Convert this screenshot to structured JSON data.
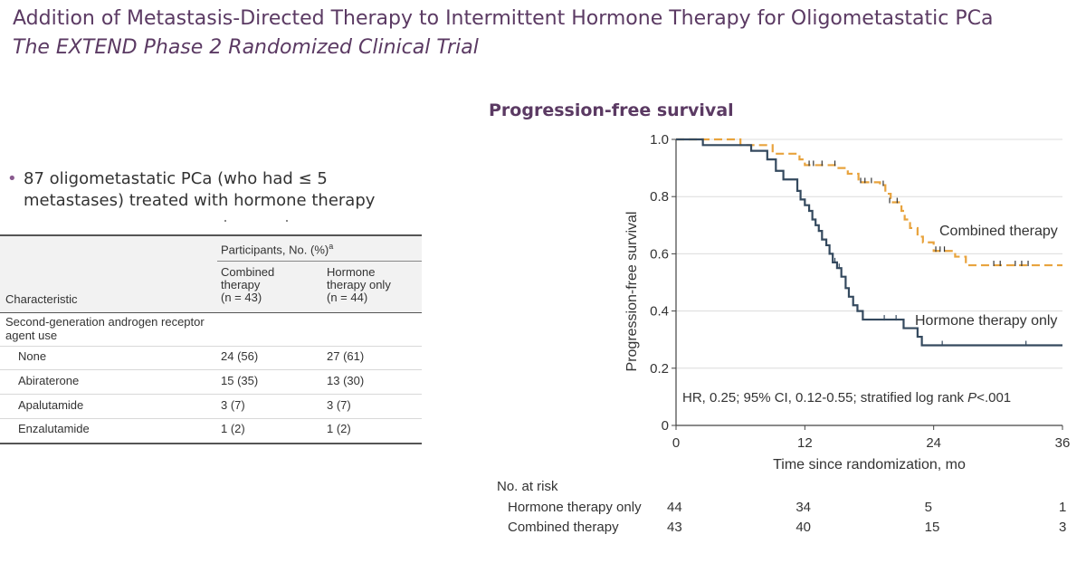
{
  "header": {
    "title": "Addition of Metastasis-Directed Therapy to Intermittent Hormone Therapy for Oligometastatic PCa",
    "subtitle": "The EXTEND Phase 2 Randomized Clinical Trial"
  },
  "bullet": {
    "text": "87 oligometastatic PCa (who had ≤ 5 metastases) treated with hormone therapy"
  },
  "table": {
    "group_header": "Participants, No. (%)",
    "group_footnote": "a",
    "col_characteristic": "Characteristic",
    "col_combined": [
      "Combined",
      "therapy",
      "(n = 43)"
    ],
    "col_hormone": [
      "Hormone",
      "therapy only",
      "(n = 44)"
    ],
    "section": [
      "Second-generation androgen receptor",
      "agent use"
    ],
    "rows": [
      {
        "label": "None",
        "combined": "24 (56)",
        "hormone": "27 (61)"
      },
      {
        "label": "Abiraterone",
        "combined": "15 (35)",
        "hormone": "13 (30)"
      },
      {
        "label": "Apalutamide",
        "combined": "3 (7)",
        "hormone": "3 (7)"
      },
      {
        "label": "Enzalutamide",
        "combined": "1 (2)",
        "hormone": "1 (2)"
      }
    ]
  },
  "chart_data": {
    "type": "line",
    "title": "Progression-free survival",
    "xlabel": "Time since randomization, mo",
    "ylabel": "Progression-free survival",
    "xlim": [
      0,
      36
    ],
    "ylim": [
      0,
      1.0
    ],
    "x_ticks": [
      "0",
      "12",
      "24",
      "36"
    ],
    "y_ticks": [
      "0",
      "0.2",
      "0.4",
      "0.6",
      "0.8",
      "1.0"
    ],
    "grid": true,
    "annotation": "HR, 0.25; 95% CI, 0.12-0.55; stratified log rank P<.001",
    "series": [
      {
        "name": "Combined therapy",
        "color": "#e8a33d",
        "style": "dashed",
        "steps": [
          [
            0,
            1.0
          ],
          [
            6,
            0.98
          ],
          [
            9,
            0.95
          ],
          [
            11.5,
            0.93
          ],
          [
            12,
            0.91
          ],
          [
            15,
            0.9
          ],
          [
            16,
            0.88
          ],
          [
            17,
            0.85
          ],
          [
            19,
            0.84
          ],
          [
            19.5,
            0.81
          ],
          [
            20,
            0.78
          ],
          [
            21,
            0.75
          ],
          [
            21.3,
            0.72
          ],
          [
            21.8,
            0.69
          ],
          [
            22.5,
            0.66
          ],
          [
            23,
            0.64
          ],
          [
            24,
            0.61
          ],
          [
            26,
            0.59
          ],
          [
            27,
            0.56
          ],
          [
            36,
            0.56
          ]
        ],
        "censors": [
          [
            12.4,
            0.91
          ],
          [
            12.8,
            0.91
          ],
          [
            13.6,
            0.91
          ],
          [
            14.8,
            0.91
          ],
          [
            17.2,
            0.85
          ],
          [
            17.6,
            0.85
          ],
          [
            18.2,
            0.85
          ],
          [
            19.3,
            0.84
          ],
          [
            19.9,
            0.78
          ],
          [
            20.6,
            0.78
          ],
          [
            24.2,
            0.61
          ],
          [
            24.6,
            0.61
          ],
          [
            25.0,
            0.61
          ],
          [
            29.6,
            0.56
          ],
          [
            30.2,
            0.56
          ],
          [
            31.6,
            0.56
          ],
          [
            32.2,
            0.56
          ],
          [
            32.8,
            0.56
          ]
        ]
      },
      {
        "name": "Hormone therapy only",
        "color": "#34495e",
        "style": "solid",
        "steps": [
          [
            0,
            1.0
          ],
          [
            2.5,
            0.98
          ],
          [
            7,
            0.96
          ],
          [
            8.5,
            0.93
          ],
          [
            9.3,
            0.89
          ],
          [
            10,
            0.86
          ],
          [
            11.3,
            0.82
          ],
          [
            11.6,
            0.79
          ],
          [
            12,
            0.77
          ],
          [
            12.4,
            0.75
          ],
          [
            12.7,
            0.72
          ],
          [
            13,
            0.7
          ],
          [
            13.3,
            0.68
          ],
          [
            13.6,
            0.65
          ],
          [
            14,
            0.63
          ],
          [
            14.3,
            0.6
          ],
          [
            14.6,
            0.57
          ],
          [
            15,
            0.55
          ],
          [
            15.4,
            0.52
          ],
          [
            15.8,
            0.48
          ],
          [
            16.1,
            0.45
          ],
          [
            16.5,
            0.42
          ],
          [
            16.9,
            0.4
          ],
          [
            17.4,
            0.37
          ],
          [
            21.2,
            0.34
          ],
          [
            22.5,
            0.31
          ],
          [
            22.9,
            0.28
          ],
          [
            36,
            0.28
          ]
        ],
        "censors": [
          [
            14.8,
            0.57
          ],
          [
            15.2,
            0.55
          ],
          [
            19.4,
            0.37
          ],
          [
            20.5,
            0.37
          ],
          [
            24.8,
            0.28
          ],
          [
            32.6,
            0.28
          ]
        ]
      }
    ]
  },
  "risk_table": {
    "heading": "No. at risk",
    "rows": [
      {
        "label": "Hormone therapy only",
        "values": [
          "44",
          "34",
          "5",
          "1"
        ]
      },
      {
        "label": "Combined therapy",
        "values": [
          "43",
          "40",
          "15",
          "3"
        ]
      }
    ]
  }
}
